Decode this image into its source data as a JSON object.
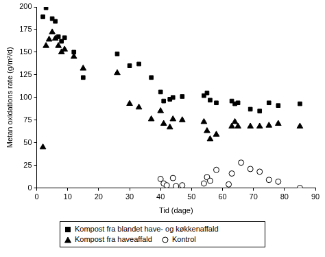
{
  "chart_data": {
    "type": "scatter",
    "x_label": "Tid (dage)",
    "y_label": "Metan oxidations rate (g/m²/d)",
    "xlim": [
      0,
      90
    ],
    "xticks": [
      0,
      10,
      20,
      30,
      40,
      50,
      60,
      70,
      80,
      90
    ],
    "ylim": [
      0,
      200
    ],
    "yticks": [
      0,
      25,
      50,
      75,
      100,
      125,
      150,
      175,
      200
    ],
    "grid": false,
    "legend": "bottom",
    "series": [
      {
        "name": "Kompost fra blandet have- og køkkenaffald",
        "color": "#000000",
        "marker": "square",
        "x": [
          2,
          3,
          5,
          6,
          7,
          8,
          9,
          12,
          15,
          26,
          30,
          33,
          37,
          40,
          41,
          43,
          44,
          47,
          54,
          55,
          56,
          58,
          63,
          64,
          65,
          69,
          72,
          75,
          78,
          85
        ],
        "values": [
          189,
          199,
          187,
          184,
          167,
          162,
          166,
          150,
          122,
          148,
          135,
          137,
          122,
          106,
          96,
          98,
          100,
          101,
          102,
          105,
          97,
          94,
          96,
          93,
          94,
          87,
          85,
          94,
          91,
          93
        ]
      },
      {
        "name": "Kompost fra haveaffald",
        "color": "#000000",
        "marker": "triangle",
        "x": [
          2,
          3,
          4,
          5,
          6,
          7,
          8,
          9,
          12,
          15,
          26,
          30,
          33,
          37,
          40,
          41,
          43,
          44,
          47,
          54,
          55,
          56,
          58,
          63,
          64,
          65,
          69,
          72,
          75,
          78,
          85
        ],
        "values": [
          45,
          157,
          164,
          172,
          165,
          157,
          150,
          153,
          145,
          132,
          127,
          93,
          89,
          76,
          85,
          71,
          67,
          76,
          75,
          73,
          63,
          54,
          59,
          68,
          73,
          68,
          68,
          68,
          69,
          71,
          68
        ]
      },
      {
        "name": "Kontrol",
        "color": "#000000",
        "marker": "open_circle",
        "x": [
          40,
          41,
          42,
          44,
          45,
          47,
          54,
          55,
          56,
          58,
          62,
          63,
          66,
          69,
          72,
          75,
          78,
          85
        ],
        "values": [
          10,
          5,
          3,
          11,
          2,
          3,
          5,
          12,
          8,
          20,
          4,
          16,
          28,
          21,
          18,
          9,
          7,
          0
        ]
      }
    ]
  }
}
